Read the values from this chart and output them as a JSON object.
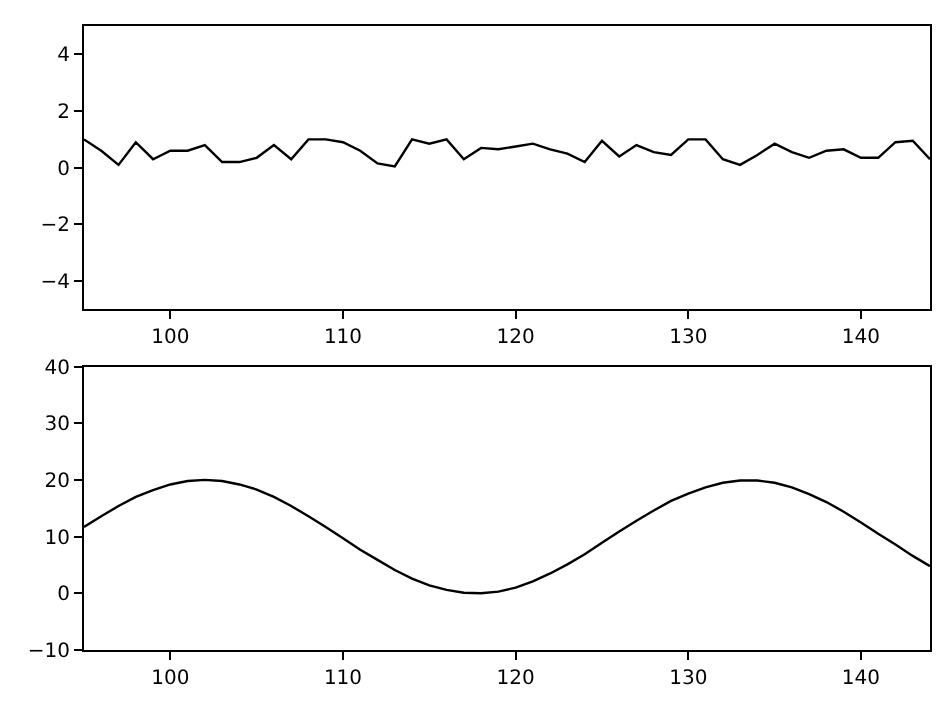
{
  "chart_data": [
    {
      "type": "line",
      "x": [
        95,
        96,
        97,
        98,
        99,
        100,
        101,
        102,
        103,
        104,
        105,
        106,
        107,
        108,
        109,
        110,
        111,
        112,
        113,
        114,
        115,
        116,
        117,
        118,
        119,
        120,
        121,
        122,
        123,
        124,
        125,
        126,
        127,
        128,
        129,
        130,
        131,
        132,
        133,
        134,
        135,
        136,
        137,
        138,
        139,
        140,
        141,
        142,
        143,
        144
      ],
      "series": [
        {
          "color": "#000000",
          "values": [
            1.0,
            0.6,
            0.1,
            0.9,
            0.3,
            0.6,
            0.6,
            0.8,
            0.2,
            0.2,
            0.35,
            0.8,
            0.3,
            1.0,
            1.0,
            0.9,
            0.6,
            0.15,
            0.05,
            1.0,
            0.85,
            1.0,
            0.3,
            0.7,
            0.65,
            0.75,
            0.85,
            0.65,
            0.5,
            0.2,
            0.95,
            0.4,
            0.8,
            0.55,
            0.45,
            1.0,
            1.0,
            0.3,
            0.1,
            0.45,
            0.85,
            0.55,
            0.35,
            0.6,
            0.65,
            0.35,
            0.35,
            0.9,
            0.95,
            0.3
          ]
        }
      ],
      "xlim": [
        95,
        144
      ],
      "xticks": [
        100,
        110,
        120,
        130,
        140
      ],
      "ylim": [
        -5,
        5
      ],
      "yticks": [
        -4,
        -2,
        0,
        2,
        4
      ]
    },
    {
      "type": "line",
      "x": [
        95,
        96,
        97,
        98,
        99,
        100,
        101,
        102,
        103,
        104,
        105,
        106,
        107,
        108,
        109,
        110,
        111,
        112,
        113,
        114,
        115,
        116,
        117,
        118,
        119,
        120,
        121,
        122,
        123,
        124,
        125,
        126,
        127,
        128,
        129,
        130,
        131,
        132,
        133,
        134,
        135,
        136,
        137,
        138,
        139,
        140,
        141,
        142,
        143,
        144
      ],
      "series": [
        {
          "color": "#000000",
          "values": [
            11.7,
            13.6,
            15.4,
            17.0,
            18.2,
            19.2,
            19.8,
            20.0,
            19.8,
            19.2,
            18.3,
            17.0,
            15.4,
            13.6,
            11.7,
            9.7,
            7.7,
            5.9,
            4.1,
            2.6,
            1.4,
            0.6,
            0.1,
            0.0,
            0.3,
            1.0,
            2.1,
            3.5,
            5.1,
            6.9,
            8.9,
            10.9,
            12.8,
            14.6,
            16.3,
            17.6,
            18.7,
            19.5,
            19.9,
            19.9,
            19.5,
            18.7,
            17.5,
            16.1,
            14.4,
            12.5,
            10.5,
            8.6,
            6.6,
            4.8
          ]
        }
      ],
      "xlim": [
        95,
        144
      ],
      "xticks": [
        100,
        110,
        120,
        130,
        140
      ],
      "ylim": [
        -10,
        40
      ],
      "yticks": [
        -10,
        0,
        10,
        20,
        30,
        40
      ]
    }
  ]
}
